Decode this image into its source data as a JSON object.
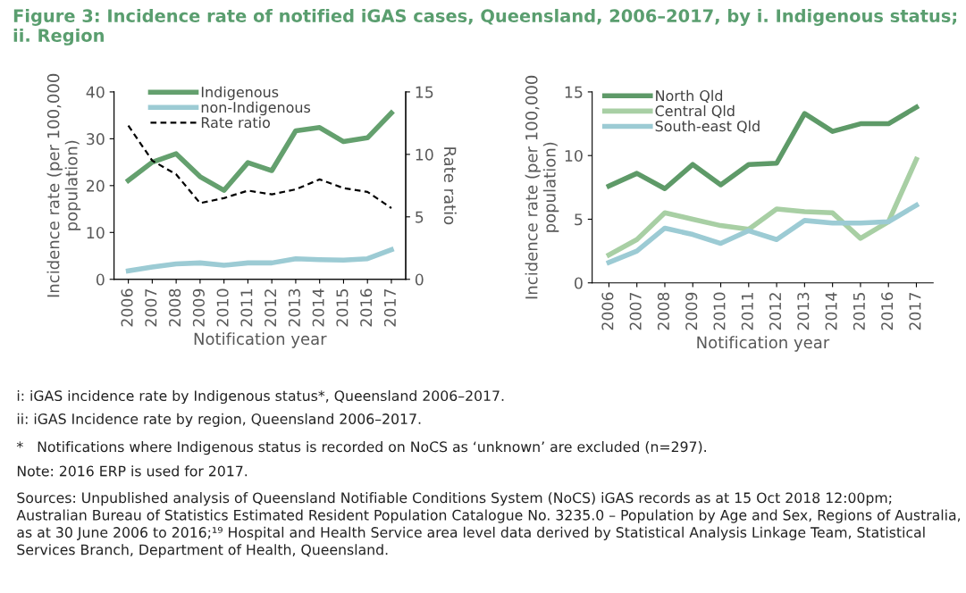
{
  "chart_data": [
    {
      "type": "line",
      "title": "Figure 3: Incidence rate of notified iGAS cases, Queensland, 2006–2017, by i. Indigenous status; ii. Region",
      "annotations": [
        "i: iGAS incidence rate by Indigenous status*, Queensland 2006–2017.",
        "ii: iGAS Incidence rate by region, Queensland 2006–2017.",
        "*   Notifications where Indigenous status is recorded on NoCS as ‘unknown’ are excluded (n=297).",
        "Note: 2016 ERP is used for 2017.",
        "Sources: Unpublished analysis of Queensland Notifiable Conditions System (NoCS) iGAS records as at 15 Oct 2018 12:00pm; Australian Bureau of Statistics Estimated Resident Population Catalogue No. 3235.0 – Population by Age and Sex, Regions of Australia, as at 30 June 2006 to 2016;¹⁹ Hospital and Health Service area level data derived by Statistical Analysis Linkage Team, Statistical Services Branch, Department of Health, Queensland."
      ],
      "categories": [
        "2006",
        "2007",
        "2008",
        "2009",
        "2010",
        "2011",
        "2012",
        "2013",
        "2014",
        "2015",
        "2016",
        "2017"
      ],
      "xlabel": "Notification year",
      "ylabel": "Incidence rate (per 100,000\npopulation)",
      "y2label": "Rate ratio",
      "ylim": [
        0,
        40
      ],
      "yticks": [
        0,
        10,
        20,
        30,
        40
      ],
      "y2lim": [
        0,
        15
      ],
      "y2ticks": [
        0,
        5,
        10,
        15
      ],
      "grid": false,
      "legend": "top",
      "marker": "none",
      "series": [
        {
          "name": "Indigenous",
          "color": "#64a06e",
          "values": [
            21.1,
            25.0,
            26.8,
            21.9,
            19.0,
            24.9,
            23.2,
            31.7,
            32.4,
            29.4,
            30.2,
            35.5
          ]
        },
        {
          "name": "non-Indigenous",
          "color": "#9ccbd4",
          "values": [
            1.8,
            2.6,
            3.3,
            3.5,
            3.0,
            3.5,
            3.5,
            4.4,
            4.2,
            4.1,
            4.4,
            6.3
          ]
        },
        {
          "name": "Rate ratio",
          "color": "#000000",
          "axis": "y2",
          "line_style": "dashed",
          "values": [
            12.3,
            9.5,
            8.4,
            6.1,
            6.5,
            7.1,
            6.8,
            7.2,
            8.0,
            7.3,
            7.0,
            5.7
          ]
        }
      ]
    },
    {
      "type": "line",
      "categories": [
        "2006",
        "2007",
        "2008",
        "2009",
        "2010",
        "2011",
        "2012",
        "2013",
        "2014",
        "2015",
        "2016",
        "2017"
      ],
      "xlabel": "Notification year",
      "ylabel": "Incidence rate (per 100,000\npopulation)",
      "ylim": [
        0,
        15
      ],
      "yticks": [
        0,
        5,
        10,
        15
      ],
      "grid": false,
      "legend": "top left",
      "marker": "none",
      "series": [
        {
          "name": "North Qld",
          "color": "#5e9a68",
          "values": [
            7.6,
            8.6,
            7.4,
            9.3,
            7.7,
            9.3,
            9.4,
            13.3,
            11.9,
            12.5,
            12.5,
            13.8
          ]
        },
        {
          "name": "Central Qld",
          "color": "#a8cfa4",
          "values": [
            2.2,
            3.4,
            5.5,
            5.0,
            4.5,
            4.2,
            5.8,
            5.6,
            5.5,
            3.5,
            4.8,
            9.7
          ]
        },
        {
          "name": "South-east Qld",
          "color": "#9ccbd4",
          "values": [
            1.6,
            2.5,
            4.3,
            3.8,
            3.1,
            4.1,
            3.4,
            4.9,
            4.7,
            4.7,
            4.8,
            6.1
          ]
        }
      ]
    }
  ]
}
